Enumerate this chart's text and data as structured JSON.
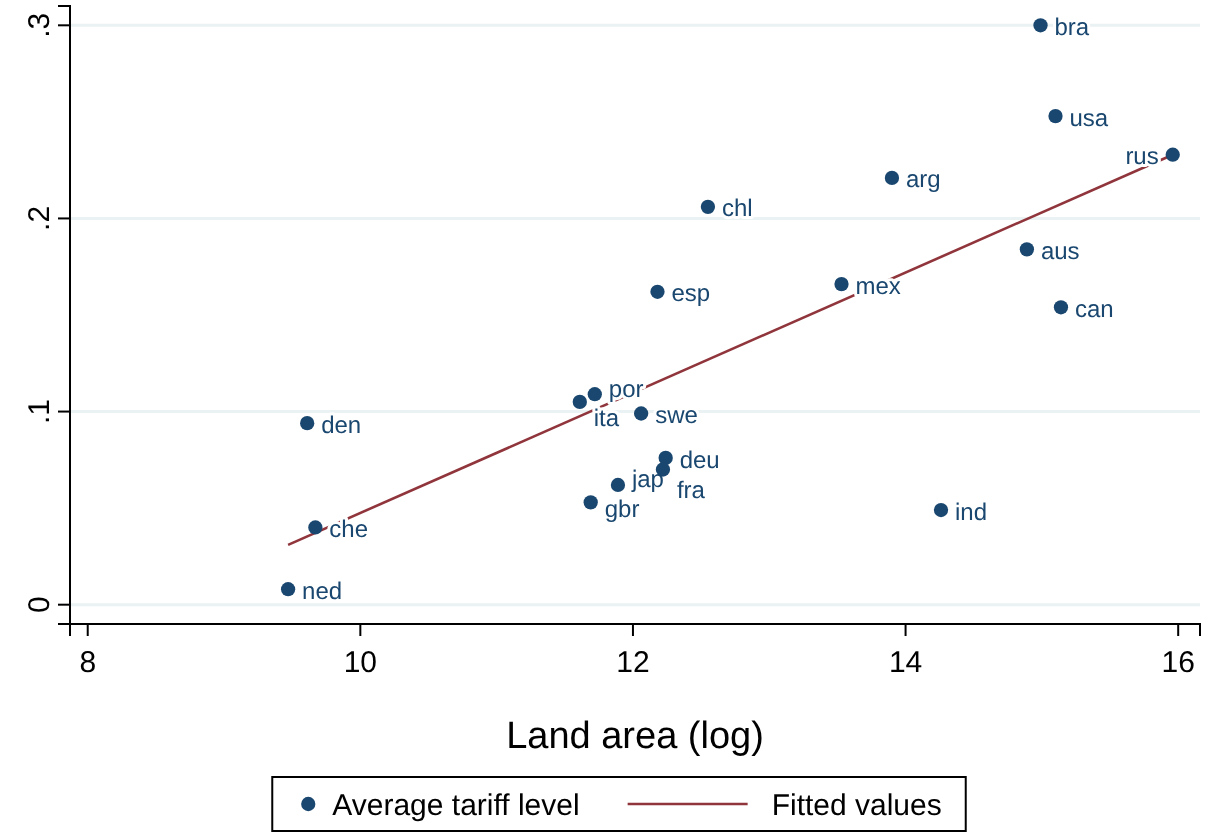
{
  "chart_data": {
    "type": "scatter",
    "xlabel": "Land area (log)",
    "xlim": [
      7.87,
      16.16
    ],
    "ylim": [
      -0.01,
      0.31
    ],
    "xticks": [
      8,
      10,
      12,
      14,
      16
    ],
    "yticks": [
      {
        "value": 0,
        "label": "0"
      },
      {
        "value": 0.1,
        "label": ".1"
      },
      {
        "value": 0.2,
        "label": ".2"
      },
      {
        "value": 0.3,
        "label": ".3"
      }
    ],
    "grid": "y",
    "legend": "bottom",
    "series": [
      {
        "name": "Average tariff level",
        "color": "#1a476f",
        "marker": "circle",
        "x": [
          9.47,
          9.67,
          9.61,
          11.61,
          11.72,
          11.69,
          11.89,
          12.06,
          12.24,
          12.22,
          12.18,
          12.55,
          13.53,
          13.9,
          14.26,
          14.89,
          15.14,
          14.99,
          15.1,
          15.96
        ],
        "values": [
          0.008,
          0.04,
          0.094,
          0.105,
          0.109,
          0.053,
          0.062,
          0.099,
          0.076,
          0.07,
          0.162,
          0.206,
          0.166,
          0.221,
          0.049,
          0.184,
          0.154,
          0.3,
          0.253,
          0.233
        ]
      },
      {
        "name": "Fitted values",
        "color": "#90353b",
        "type": "line",
        "x": [
          9.47,
          15.96
        ],
        "values": [
          0.031,
          0.233
        ]
      }
    ],
    "annotations": [
      {
        "text": "ned",
        "x": 9.47,
        "y": 0.008
      },
      {
        "text": "che",
        "x": 9.67,
        "y": 0.04
      },
      {
        "text": "den",
        "x": 9.61,
        "y": 0.094
      },
      {
        "text": "ita",
        "x": 11.61,
        "y": 0.105
      },
      {
        "text": "por",
        "x": 11.72,
        "y": 0.109
      },
      {
        "text": "gbr",
        "x": 11.69,
        "y": 0.053
      },
      {
        "text": "jap",
        "x": 11.89,
        "y": 0.062
      },
      {
        "text": "swe",
        "x": 12.06,
        "y": 0.099
      },
      {
        "text": "deu",
        "x": 12.24,
        "y": 0.076
      },
      {
        "text": "fra",
        "x": 12.22,
        "y": 0.07
      },
      {
        "text": "esp",
        "x": 12.18,
        "y": 0.162
      },
      {
        "text": "chl",
        "x": 12.55,
        "y": 0.206
      },
      {
        "text": "mex",
        "x": 13.53,
        "y": 0.166
      },
      {
        "text": "arg",
        "x": 13.9,
        "y": 0.221
      },
      {
        "text": "ind",
        "x": 14.26,
        "y": 0.049
      },
      {
        "text": "aus",
        "x": 14.89,
        "y": 0.184
      },
      {
        "text": "can",
        "x": 15.14,
        "y": 0.154
      },
      {
        "text": "bra",
        "x": 14.99,
        "y": 0.3
      },
      {
        "text": "usa",
        "x": 15.1,
        "y": 0.253
      },
      {
        "text": "rus",
        "x": 15.96,
        "y": 0.233
      }
    ]
  }
}
